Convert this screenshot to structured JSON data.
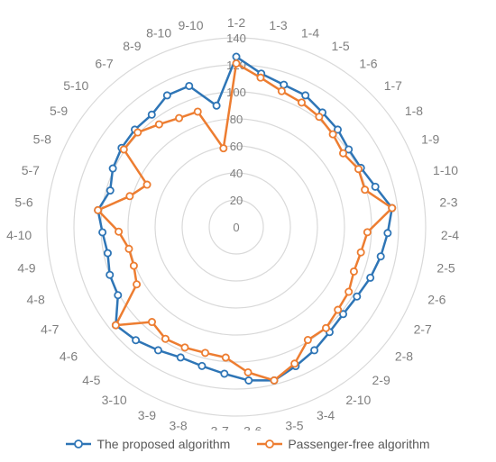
{
  "chart_data": {
    "type": "radar",
    "categories": [
      "1-2",
      "1-3",
      "1-4",
      "1-5",
      "1-6",
      "1-7",
      "1-8",
      "1-9",
      "1-10",
      "2-3",
      "2-4",
      "2-5",
      "2-6",
      "2-7",
      "2-8",
      "2-9",
      "2-10",
      "3-4",
      "3-5",
      "3-6",
      "3-7",
      "3-8",
      "3-9",
      "3-10",
      "4-5",
      "4-6",
      "4-7",
      "4-8",
      "4-9",
      "4-10",
      "5-6",
      "5-7",
      "5-8",
      "5-9",
      "5-10",
      "6-7",
      "8-9",
      "8-10",
      "9-10"
    ],
    "r_ticks": [
      0,
      20,
      40,
      60,
      80,
      100,
      120,
      140
    ],
    "rlim": [
      0,
      140
    ],
    "grid": true,
    "legend_position": "bottom",
    "series": [
      {
        "name": "The proposed algorithm",
        "color": "#2E75B6",
        "values": [
          126,
          115,
          111,
          110,
          106,
          104,
          101,
          102,
          107,
          116,
          112,
          109,
          106,
          103,
          102,
          104,
          108,
          112,
          117,
          114,
          109,
          106,
          105,
          108,
          112,
          115,
          101,
          100,
          97,
          99,
          103,
          97,
          101,
          103,
          104,
          104,
          110,
          110,
          91
        ]
      },
      {
        "name": "Passenger-free algorithm",
        "color": "#ED7D31",
        "values": [
          121,
          112,
          106,
          104,
          102,
          99,
          96,
          100,
          99,
          116,
          97,
          94,
          93,
          96,
          97,
          100,
          99,
          110,
          117,
          108,
          97,
          96,
          97,
          98,
          94,
          115,
          85,
          81,
          81,
          87,
          103,
          82,
          73,
          101,
          101,
          95,
          91,
          90,
          59
        ]
      }
    ]
  }
}
